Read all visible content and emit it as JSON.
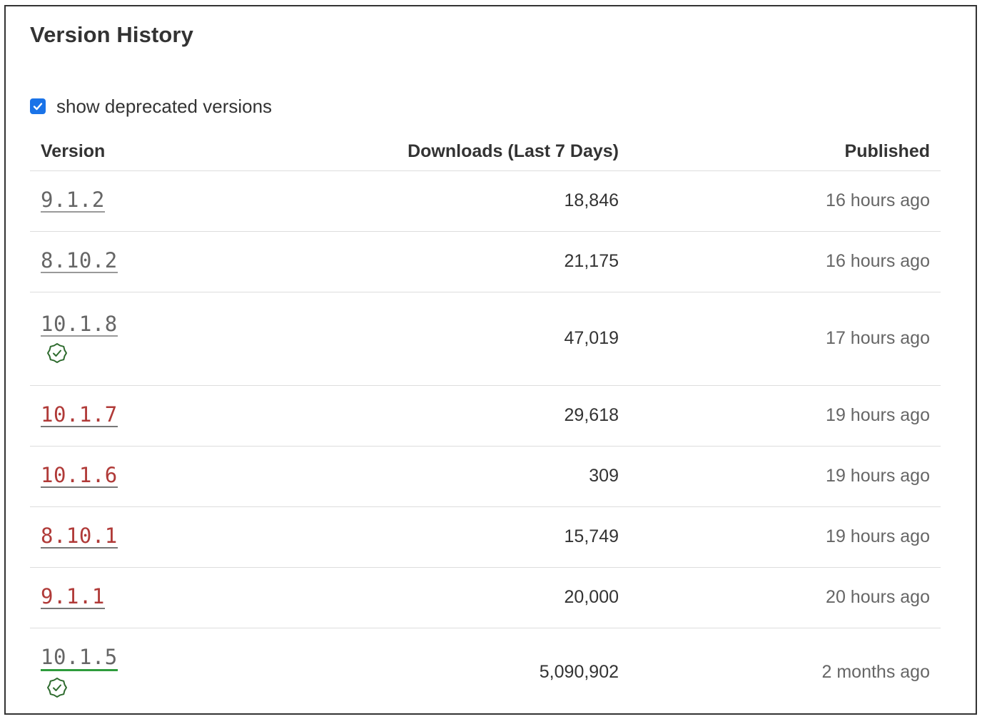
{
  "title": "Version History",
  "deprecated_toggle": {
    "label": "show deprecated versions",
    "checked": true
  },
  "columns": {
    "version": "Version",
    "downloads": "Downloads (Last 7 Days)",
    "published": "Published"
  },
  "colors": {
    "checkbox": "#1a73e8",
    "deprecated_link": "#b03a38",
    "verified_icon": "#2e6b2e",
    "highlight_underline": "#2e9c3c"
  },
  "rows": [
    {
      "version": "9.1.2",
      "downloads": "18,846",
      "published": "16 hours ago",
      "deprecated": false,
      "verified": false
    },
    {
      "version": "8.10.2",
      "downloads": "21,175",
      "published": "16 hours ago",
      "deprecated": false,
      "verified": false
    },
    {
      "version": "10.1.8",
      "downloads": "47,019",
      "published": "17 hours ago",
      "deprecated": false,
      "verified": true,
      "icon": "verified-badge-icon"
    },
    {
      "version": "10.1.7",
      "downloads": "29,618",
      "published": "19 hours ago",
      "deprecated": true,
      "verified": false
    },
    {
      "version": "10.1.6",
      "downloads": "309",
      "published": "19 hours ago",
      "deprecated": true,
      "verified": false
    },
    {
      "version": "8.10.1",
      "downloads": "15,749",
      "published": "19 hours ago",
      "deprecated": true,
      "verified": false
    },
    {
      "version": "9.1.1",
      "downloads": "20,000",
      "published": "20 hours ago",
      "deprecated": true,
      "verified": false
    },
    {
      "version": "10.1.5",
      "downloads": "5,090,902",
      "published": "2 months ago",
      "deprecated": false,
      "verified": true,
      "icon": "verified-badge-icon"
    }
  ]
}
